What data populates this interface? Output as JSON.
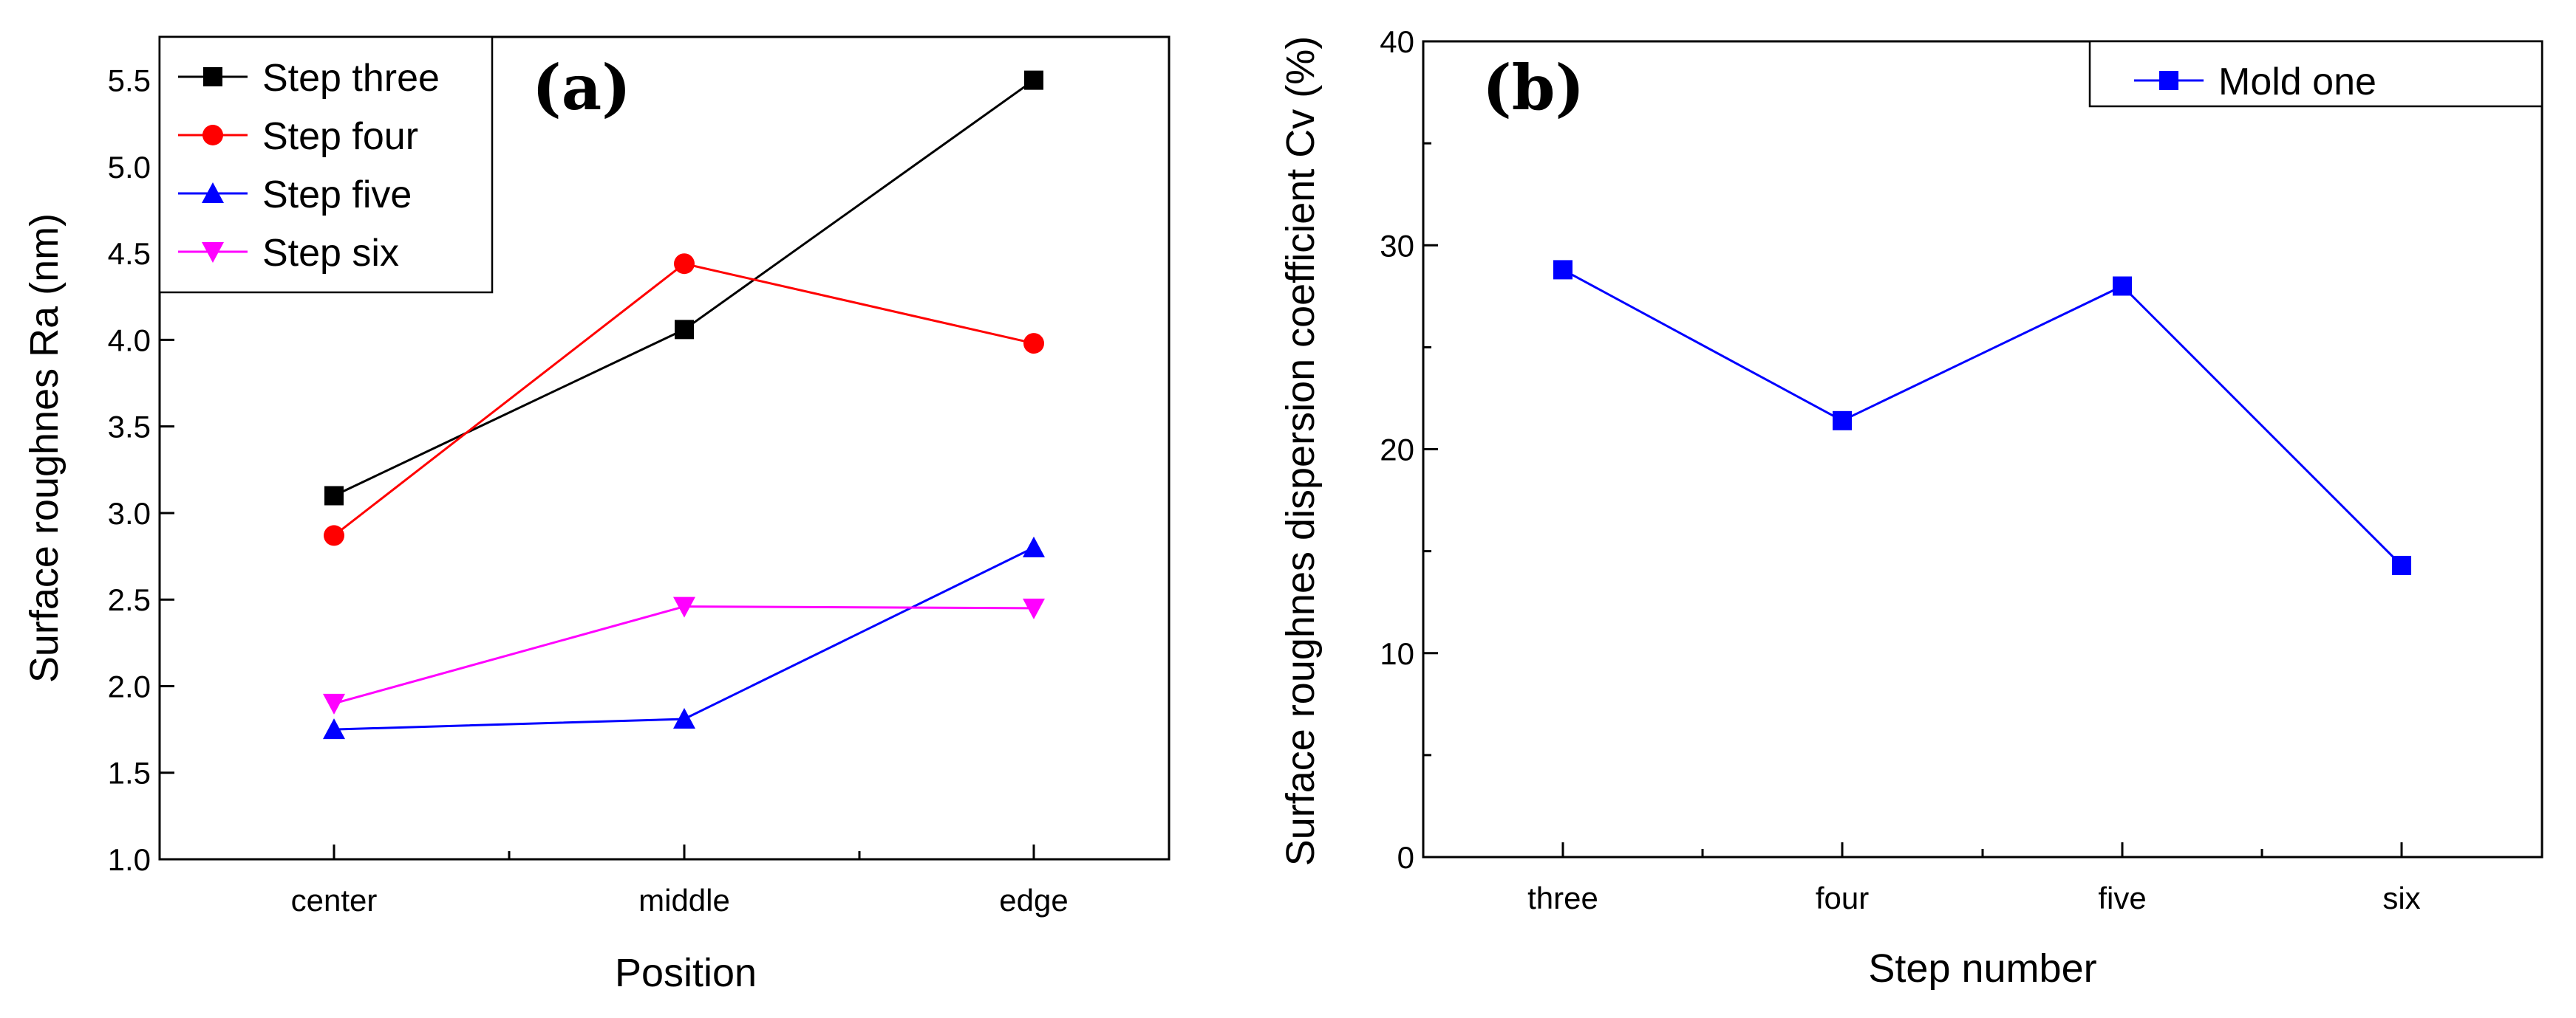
{
  "chart_data": [
    {
      "panel": "(a)",
      "type": "line",
      "categories": [
        "center",
        "middle",
        "edge"
      ],
      "series": [
        {
          "name": "Step three",
          "values": [
            3.1,
            4.06,
            5.5
          ],
          "color": "#000000",
          "marker": "square"
        },
        {
          "name": "Step four",
          "values": [
            2.87,
            4.44,
            3.98
          ],
          "color": "#ff0000",
          "marker": "circle"
        },
        {
          "name": "Step five",
          "values": [
            1.75,
            1.81,
            2.8
          ],
          "color": "#0000ff",
          "marker": "triangle-up"
        },
        {
          "name": "Step six",
          "values": [
            1.9,
            2.46,
            2.45
          ],
          "color": "#ff00ff",
          "marker": "triangle-down"
        }
      ],
      "xlabel": "Position",
      "ylabel": "Surface roughnes Ra (nm)",
      "ylim": [
        1.0,
        5.75
      ],
      "yticks": [
        "1.0",
        "1.5",
        "2.0",
        "2.5",
        "3.0",
        "3.5",
        "4.0",
        "4.5",
        "5.0",
        "5.5"
      ],
      "legend_position": "top-left",
      "grid": false
    },
    {
      "panel": "(b)",
      "type": "line",
      "categories": [
        "three",
        "four",
        "five",
        "six"
      ],
      "series": [
        {
          "name": "Mold one",
          "values": [
            28.8,
            21.4,
            28.0,
            14.3
          ],
          "color": "#0000ff",
          "marker": "square"
        }
      ],
      "xlabel": "Step number",
      "ylabel": "Surface roughnes  dispersion coefficient Cv (%)",
      "ylim": [
        0,
        40
      ],
      "yticks": [
        "0",
        "10",
        "20",
        "30",
        "40"
      ],
      "legend_position": "top-right",
      "grid": false
    }
  ]
}
